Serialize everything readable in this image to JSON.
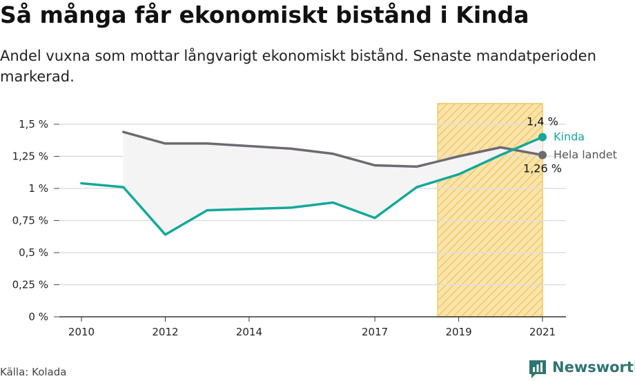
{
  "title": "Så många får ekonomiskt bistånd i Kinda",
  "subtitle": "Andel vuxna som mottar långvarigt ekonomiskt bistånd. Senaste mandatperioden markerad.",
  "source": "Källa: Kolada",
  "brand": "Newsworthy",
  "colors": {
    "kinda": "#13a89a",
    "hela_landet": "#6e6a70",
    "highlight_fill": "#fbe4ab",
    "highlight_hatch": "#f0c766",
    "area_fill": "#f4f4f4",
    "brand": "#2f7570"
  },
  "chart_data": {
    "type": "line",
    "x": [
      2010,
      2011,
      2012,
      2013,
      2014,
      2015,
      2016,
      2017,
      2018,
      2019,
      2020,
      2021
    ],
    "series": [
      {
        "name": "Kinda",
        "values": [
          1.04,
          1.01,
          0.64,
          0.83,
          0.84,
          0.85,
          0.89,
          0.77,
          1.01,
          1.11,
          1.26,
          1.4
        ]
      },
      {
        "name": "Hela landet",
        "values": [
          null,
          1.44,
          1.35,
          1.35,
          1.33,
          1.31,
          1.27,
          1.18,
          1.17,
          1.25,
          1.32,
          1.26
        ]
      }
    ],
    "x_ticks": [
      2010,
      2012,
      2014,
      2017,
      2019,
      2021
    ],
    "x_tick_labels": [
      "2010",
      "2012",
      "2014",
      "2017",
      "2019",
      "2021"
    ],
    "y_ticks": [
      0,
      0.25,
      0.5,
      0.75,
      1,
      1.25,
      1.5
    ],
    "y_tick_labels": [
      "0 %",
      "0,25 %",
      "0,5 %",
      "0,75 %",
      "1 %",
      "1,25 %",
      "1,5 %"
    ],
    "ylim": [
      0,
      1.5
    ],
    "highlight_period": [
      2018.5,
      2021
    ],
    "end_labels": {
      "kinda": "1,4 %",
      "hela_landet": "1,26 %"
    },
    "grid": true,
    "legend": "line-end labels"
  }
}
